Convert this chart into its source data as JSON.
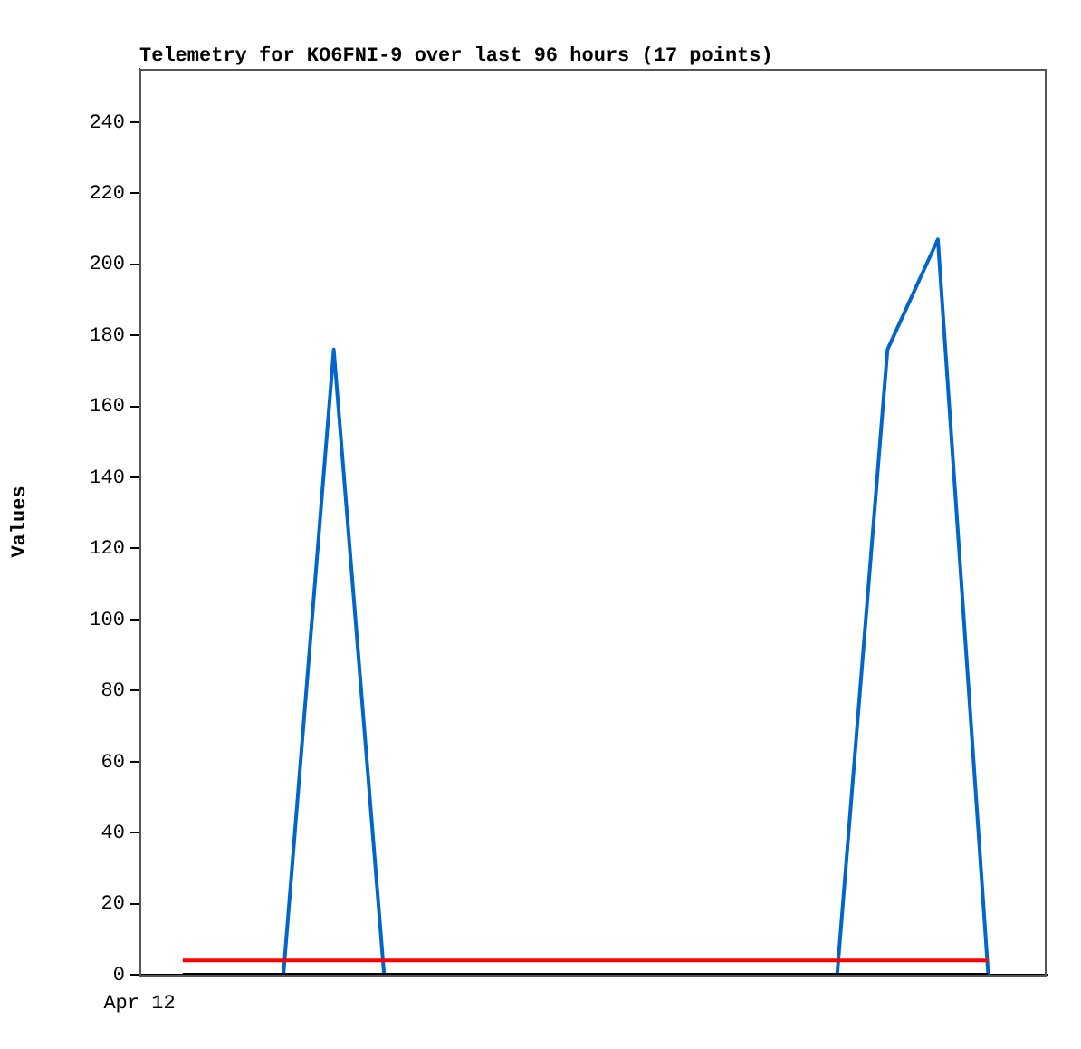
{
  "chart_data": {
    "type": "line",
    "title": "Telemetry for KO6FNI-9 over last 96 hours (17 points)",
    "ylabel": "Values",
    "categories": [
      null,
      null,
      null,
      null,
      null,
      null,
      null,
      null,
      null,
      null,
      null,
      null,
      null,
      null,
      null,
      null,
      null
    ],
    "annotations": [
      "Apr 12"
    ],
    "ylim": [
      0,
      255
    ],
    "yticks": [
      0,
      20,
      40,
      60,
      80,
      100,
      120,
      140,
      160,
      180,
      200,
      220,
      240
    ],
    "grid": false,
    "legend": false,
    "marker": "none",
    "line_style": "solid",
    "series": [
      {
        "color": "#000000",
        "values": [
          0,
          0,
          0,
          0,
          0,
          0,
          0,
          0,
          0,
          0,
          0,
          0,
          0,
          0,
          0,
          0,
          0
        ]
      },
      {
        "color": "#ff0000",
        "values": [
          4,
          4,
          4,
          4,
          4,
          4,
          4,
          4,
          4,
          4,
          4,
          4,
          4,
          4,
          4,
          4,
          4
        ]
      },
      {
        "color": "#0066cc",
        "values": [
          null,
          null,
          0,
          176,
          0,
          null,
          null,
          null,
          null,
          null,
          null,
          null,
          null,
          0,
          176,
          207,
          0
        ]
      }
    ]
  }
}
